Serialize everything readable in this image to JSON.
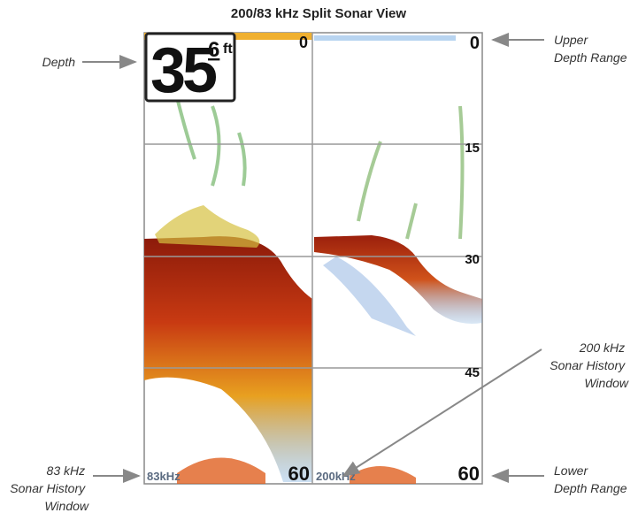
{
  "title": "200/83 kHz Split Sonar View",
  "screen": {
    "depth_readout": {
      "value": "35",
      "decimal": "6",
      "unit": "ft"
    },
    "left_panel": {
      "top_depth": "0",
      "bottom_depth": "60",
      "frequency": "83kHz"
    },
    "right_panel": {
      "depth_scale": [
        "0",
        "15",
        "30",
        "45",
        "60"
      ],
      "frequency": "200kHz"
    }
  },
  "callouts": [
    {
      "lines": [
        "Depth"
      ]
    },
    {
      "lines": [
        "Upper",
        "Depth Range"
      ]
    },
    {
      "lines": [
        "200 kHz",
        "Sonar History",
        "Window"
      ]
    },
    {
      "lines": [
        "83 kHz",
        "Sonar History",
        "Window"
      ]
    },
    {
      "lines": [
        "Lower",
        "Depth Range"
      ]
    }
  ]
}
